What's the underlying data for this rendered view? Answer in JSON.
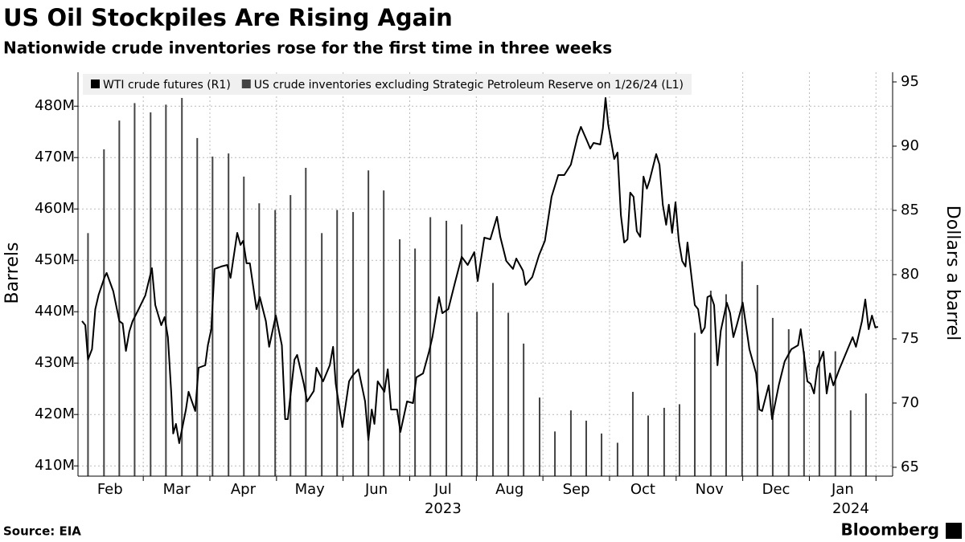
{
  "chart_data": {
    "type": "combo",
    "title": "US Oil Stockpiles Are Rising Again",
    "subtitle": "Nationwide crude inventories rose for the first time in three weeks",
    "ylabel": "Barrels",
    "y2label": "Dollars a barrel",
    "source": "Source: EIA",
    "brand": "Bloomberg",
    "xlim": [
      1.02,
      13.25
    ],
    "xticks": [
      {
        "value": 1.5,
        "label": "Feb"
      },
      {
        "value": 2.5,
        "label": "Mar"
      },
      {
        "value": 3.5,
        "label": "Apr"
      },
      {
        "value": 4.5,
        "label": "May"
      },
      {
        "value": 5.5,
        "label": "Jun"
      },
      {
        "value": 6.5,
        "label": "Jul"
      },
      {
        "value": 7.5,
        "label": "Aug"
      },
      {
        "value": 8.5,
        "label": "Sep"
      },
      {
        "value": 9.5,
        "label": "Oct"
      },
      {
        "value": 10.5,
        "label": "Nov"
      },
      {
        "value": 11.5,
        "label": "Dec"
      },
      {
        "value": 12.5,
        "label": "Jan"
      }
    ],
    "x_year_labels": [
      "2023",
      "2024"
    ],
    "ylim": [
      408,
      486.6
    ],
    "yticks": [
      {
        "value": 410,
        "label": "410M"
      },
      {
        "value": 420,
        "label": "420M"
      },
      {
        "value": 430,
        "label": "430M"
      },
      {
        "value": 440,
        "label": "440M"
      },
      {
        "value": 450,
        "label": "450M"
      },
      {
        "value": 460,
        "label": "460M"
      },
      {
        "value": 470,
        "label": "470M"
      },
      {
        "value": 480,
        "label": "480M"
      }
    ],
    "y2lim": [
      64.31,
      95.75
    ],
    "y2ticks": [
      65,
      70,
      75,
      80,
      85,
      90,
      95
    ],
    "grid": true,
    "legend": "top-left",
    "series": [
      {
        "name": "WTI crude futures (R1)",
        "type": "line",
        "axis": "y2",
        "color": "#000000",
        "x": [
          1.08,
          1.13,
          1.17,
          1.23,
          1.28,
          1.33,
          1.42,
          1.45,
          1.55,
          1.64,
          1.69,
          1.74,
          1.79,
          1.84,
          1.93,
          2.03,
          2.13,
          2.18,
          2.27,
          2.32,
          2.37,
          2.42,
          2.45,
          2.49,
          2.54,
          2.64,
          2.68,
          2.78,
          2.83,
          2.93,
          2.97,
          3.02,
          3.07,
          3.17,
          3.26,
          3.31,
          3.41,
          3.46,
          3.5,
          3.55,
          3.6,
          3.7,
          3.75,
          3.84,
          3.89,
          3.99,
          4.08,
          4.13,
          4.17,
          4.27,
          4.31,
          4.41,
          4.46,
          4.56,
          4.6,
          4.7,
          4.8,
          4.85,
          4.89,
          4.99,
          5.09,
          5.14,
          5.23,
          5.33,
          5.38,
          5.43,
          5.47,
          5.52,
          5.62,
          5.67,
          5.72,
          5.81,
          5.86,
          5.96,
          6.05,
          6.1,
          6.2,
          6.29,
          6.34,
          6.44,
          6.49,
          6.58,
          6.68,
          6.78,
          6.87,
          6.97,
          7.02,
          7.12,
          7.21,
          7.31,
          7.36,
          7.45,
          7.55,
          7.6,
          7.7,
          7.74,
          7.84,
          7.94,
          8.03,
          8.13,
          8.23,
          8.32,
          8.42,
          8.52,
          8.57,
          8.66,
          8.71,
          8.76,
          8.86,
          8.9,
          8.94,
          8.98,
          9.07,
          9.12,
          9.17,
          9.22,
          9.27,
          9.31,
          9.36,
          9.41,
          9.46,
          9.51,
          9.56,
          9.6,
          9.7,
          9.75,
          9.8,
          9.85,
          9.89,
          9.94,
          9.99,
          10.04,
          10.09,
          10.14,
          10.17,
          10.28,
          10.33,
          10.38,
          10.43,
          10.47,
          10.52,
          10.57,
          10.62,
          10.67,
          10.76,
          10.81,
          10.86,
          10.91,
          11.0,
          11.1,
          11.2,
          11.25,
          11.29,
          11.39,
          11.44,
          11.54,
          11.63,
          11.73,
          11.83,
          11.87,
          11.97,
          12.02,
          12.07,
          12.12,
          12.21,
          12.26,
          12.31,
          12.36,
          12.45,
          12.55,
          12.65,
          12.7,
          12.79,
          12.84,
          12.89,
          12.94,
          12.99,
          13.03
        ],
        "values": [
          76.38,
          76.06,
          73.38,
          74.19,
          77.31,
          78.44,
          79.81,
          80.13,
          78.69,
          76.38,
          76.19,
          74.06,
          75.56,
          76.38,
          77.31,
          78.38,
          80.5,
          77.63,
          76.06,
          76.69,
          75.13,
          70.75,
          67.63,
          68.38,
          66.88,
          69.5,
          70.88,
          69.38,
          72.75,
          72.94,
          74.5,
          75.75,
          80.44,
          80.63,
          80.75,
          79.75,
          83.25,
          82.31,
          82.63,
          80.88,
          80.88,
          77.31,
          78.25,
          76.38,
          74.38,
          76.81,
          74.5,
          68.75,
          68.75,
          73.38,
          73.75,
          71.5,
          70.13,
          70.94,
          72.75,
          71.69,
          72.94,
          74.38,
          71.5,
          68.13,
          71.69,
          72.13,
          72.63,
          70.13,
          67.13,
          69.5,
          68.38,
          71.69,
          70.88,
          72.63,
          69.5,
          69.5,
          67.75,
          70.13,
          70.0,
          72.0,
          72.31,
          74.0,
          75.13,
          78.25,
          77.0,
          77.31,
          79.38,
          81.38,
          80.75,
          81.75,
          79.5,
          82.88,
          82.75,
          84.5,
          82.94,
          81.06,
          80.44,
          81.25,
          80.31,
          79.19,
          79.81,
          81.5,
          82.63,
          86.06,
          87.75,
          87.75,
          88.56,
          90.75,
          91.5,
          90.44,
          89.81,
          90.25,
          90.13,
          91.38,
          93.75,
          91.69,
          89.0,
          89.5,
          84.63,
          82.5,
          82.75,
          86.38,
          86.06,
          83.38,
          82.94,
          87.63,
          86.69,
          87.31,
          89.38,
          88.56,
          85.44,
          83.88,
          85.44,
          83.25,
          85.63,
          82.63,
          81.06,
          80.63,
          82.5,
          77.63,
          77.31,
          75.44,
          75.88,
          78.25,
          78.38,
          77.63,
          72.94,
          75.63,
          77.81,
          77.0,
          75.13,
          76.06,
          77.81,
          74.19,
          72.31,
          69.5,
          69.38,
          71.38,
          68.75,
          71.38,
          73.25,
          74.19,
          74.5,
          75.75,
          71.69,
          71.5,
          70.75,
          72.75,
          74.0,
          70.75,
          72.31,
          71.38,
          72.63,
          73.88,
          75.13,
          74.38,
          76.38,
          78.06,
          75.75,
          76.81,
          75.88,
          75.94
        ]
      },
      {
        "name": "US crude inventories excluding Strategic Petroleum Reserve on 1/26/24 (L1)",
        "type": "bar",
        "axis": "y",
        "color": "#444444",
        "x": [
          1.17,
          1.41,
          1.64,
          1.87,
          2.11,
          2.34,
          2.58,
          2.81,
          3.04,
          3.28,
          3.51,
          3.74,
          3.98,
          4.21,
          4.44,
          4.68,
          4.91,
          5.15,
          5.38,
          5.61,
          5.85,
          6.08,
          6.31,
          6.55,
          6.78,
          7.01,
          7.25,
          7.48,
          7.71,
          7.95,
          8.18,
          8.42,
          8.65,
          8.88,
          9.12,
          9.35,
          9.58,
          9.82,
          10.05,
          10.28,
          10.52,
          10.75,
          10.99,
          11.22,
          11.45,
          11.69,
          11.92,
          12.15,
          12.39,
          12.62,
          12.85
        ],
        "values": [
          455.3,
          471.6,
          477.2,
          480.6,
          478.8,
          480.3,
          481.6,
          473.8,
          470.2,
          470.8,
          466.3,
          461.1,
          459.8,
          462.7,
          468.0,
          455.3,
          459.8,
          459.4,
          467.5,
          463.6,
          454.1,
          452.3,
          458.4,
          457.7,
          457.0,
          440.0,
          445.6,
          439.8,
          433.8,
          423.3,
          416.7,
          420.8,
          418.8,
          416.3,
          414.5,
          424.4,
          419.8,
          421.3,
          422.0,
          435.9,
          444.1,
          443.4,
          449.8,
          445.2,
          438.8,
          436.6,
          432.3,
          432.5,
          432.3,
          420.8,
          424.1
        ]
      }
    ]
  }
}
